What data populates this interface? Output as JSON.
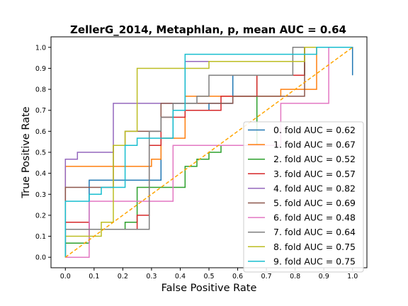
{
  "chart_data": {
    "type": "line",
    "title": "ZellerG_2014, Metaphlan, p, mean AUC =  0.64",
    "xlabel": "False Positive Rate",
    "ylabel": "True Positive Rate",
    "xlim": [
      -0.05,
      1.05
    ],
    "ylim": [
      -0.05,
      1.05
    ],
    "xticks": [
      "0.0",
      "0.1",
      "0.2",
      "0.3",
      "0.4",
      "0.5",
      "0.6",
      "0.7",
      "0.8",
      "0.9",
      "1.0"
    ],
    "yticks": [
      "0.0",
      "0.1",
      "0.2",
      "0.3",
      "0.4",
      "0.5",
      "0.6",
      "0.7",
      "0.8",
      "0.9",
      "1.0"
    ],
    "grid": false,
    "legend_position": "lower-right",
    "diagonal": {
      "x": [
        0,
        1
      ],
      "y": [
        0,
        1
      ],
      "color": "#ffa500",
      "style": "dashed"
    },
    "series": [
      {
        "name": "0. fold AUC = 0.62",
        "color": "#1f77b4",
        "x": [
          0,
          0,
          0.083,
          0.083,
          0.333,
          0.333,
          0.375,
          0.375,
          0.5,
          0.5,
          0.583,
          0.583,
          0.833,
          0.833,
          1.0,
          1.0
        ],
        "y": [
          0,
          0.067,
          0.067,
          0.367,
          0.367,
          0.567,
          0.567,
          0.7,
          0.7,
          0.733,
          0.733,
          0.867,
          0.867,
          1.0,
          1.0,
          0.867
        ]
      },
      {
        "name": "1. fold AUC = 0.67",
        "color": "#ff7f0e",
        "x": [
          0,
          0,
          0.3,
          0.3,
          0.333,
          0.333,
          0.417,
          0.417,
          0.75,
          0.75,
          0.875,
          0.875,
          1.0
        ],
        "y": [
          0,
          0.433,
          0.433,
          0.467,
          0.467,
          0.567,
          0.567,
          0.767,
          0.767,
          0.8,
          0.8,
          1.0,
          1.0
        ]
      },
      {
        "name": "2. fold AUC = 0.52",
        "color": "#2ca02c",
        "x": [
          0,
          0,
          0.083,
          0.083,
          0.208,
          0.208,
          0.25,
          0.25,
          0.417,
          0.417,
          0.458,
          0.458,
          0.5,
          0.5,
          0.542,
          0.542,
          0.667,
          0.667,
          0.833,
          0.833,
          1.0
        ],
        "y": [
          0,
          0.067,
          0.067,
          0.133,
          0.133,
          0.167,
          0.167,
          0.333,
          0.333,
          0.433,
          0.433,
          0.467,
          0.467,
          0.5,
          0.5,
          0.533,
          0.533,
          0.867,
          0.867,
          1.0,
          1.0
        ]
      },
      {
        "name": "3. fold AUC = 0.57",
        "color": "#d62728",
        "x": [
          0,
          0,
          0.083,
          0.083,
          0.25,
          0.25,
          0.292,
          0.292,
          0.333,
          0.333,
          0.417,
          0.417,
          0.542,
          0.542,
          0.667,
          0.667,
          0.833,
          0.833,
          1.0
        ],
        "y": [
          0,
          0.167,
          0.167,
          0.133,
          0.133,
          0.2,
          0.2,
          0.533,
          0.533,
          0.667,
          0.667,
          0.7,
          0.7,
          0.767,
          0.767,
          0.867,
          0.867,
          1.0,
          1.0
        ]
      },
      {
        "name": "4. fold AUC = 0.82",
        "color": "#9467bd",
        "x": [
          0,
          0,
          0.042,
          0.042,
          0.167,
          0.167,
          0.417,
          0.417,
          0.833,
          0.833,
          1.0
        ],
        "y": [
          0,
          0.467,
          0.467,
          0.5,
          0.5,
          0.733,
          0.733,
          0.933,
          0.933,
          1.0,
          1.0
        ]
      },
      {
        "name": "5. fold AUC = 0.69",
        "color": "#8c564b",
        "x": [
          0,
          0,
          0.167,
          0.167,
          0.208,
          0.208,
          0.333,
          0.333,
          0.583,
          0.583,
          0.833,
          0.833,
          1.0
        ],
        "y": [
          0,
          0.333,
          0.333,
          0.533,
          0.533,
          0.6,
          0.6,
          0.733,
          0.733,
          0.767,
          0.767,
          1.0,
          1.0
        ]
      },
      {
        "name": "6. fold AUC = 0.48",
        "color": "#e377c2",
        "x": [
          0,
          0,
          0.083,
          0.083,
          0.375,
          0.375,
          0.583,
          0.583,
          0.75,
          0.75,
          0.917,
          0.917,
          1.0
        ],
        "y": [
          0,
          0.0,
          0.0,
          0.267,
          0.267,
          0.533,
          0.533,
          0.533,
          0.533,
          0.733,
          0.733,
          1.0,
          1.0
        ]
      },
      {
        "name": "7. fold AUC = 0.64",
        "color": "#7f7f7f",
        "x": [
          0,
          0,
          0.292,
          0.292,
          0.333,
          0.333,
          0.375,
          0.375,
          0.458,
          0.458,
          0.5,
          0.5,
          0.792,
          0.792,
          1.0
        ],
        "y": [
          0,
          0.133,
          0.133,
          0.6,
          0.6,
          0.667,
          0.667,
          0.733,
          0.733,
          0.767,
          0.767,
          0.867,
          0.867,
          1.0,
          1.0
        ]
      },
      {
        "name": "8. fold AUC = 0.75",
        "color": "#bcbd22",
        "x": [
          0,
          0,
          0.125,
          0.125,
          0.167,
          0.167,
          0.208,
          0.208,
          0.25,
          0.25,
          0.5,
          0.5,
          0.833,
          0.833,
          1.0
        ],
        "y": [
          0,
          0.1,
          0.1,
          0.167,
          0.167,
          0.533,
          0.533,
          0.6,
          0.6,
          0.9,
          0.9,
          0.933,
          0.933,
          1.0,
          1.0
        ]
      },
      {
        "name": "9. fold AUC = 0.75",
        "color": "#17becf",
        "x": [
          0,
          0,
          0.083,
          0.083,
          0.125,
          0.125,
          0.208,
          0.208,
          0.25,
          0.25,
          0.375,
          0.375,
          0.417,
          0.417,
          0.875,
          0.875,
          1.0
        ],
        "y": [
          0,
          0.267,
          0.267,
          0.3,
          0.3,
          0.333,
          0.333,
          0.533,
          0.533,
          0.567,
          0.567,
          0.7,
          0.7,
          0.967,
          0.967,
          1.0,
          1.0
        ]
      }
    ]
  }
}
